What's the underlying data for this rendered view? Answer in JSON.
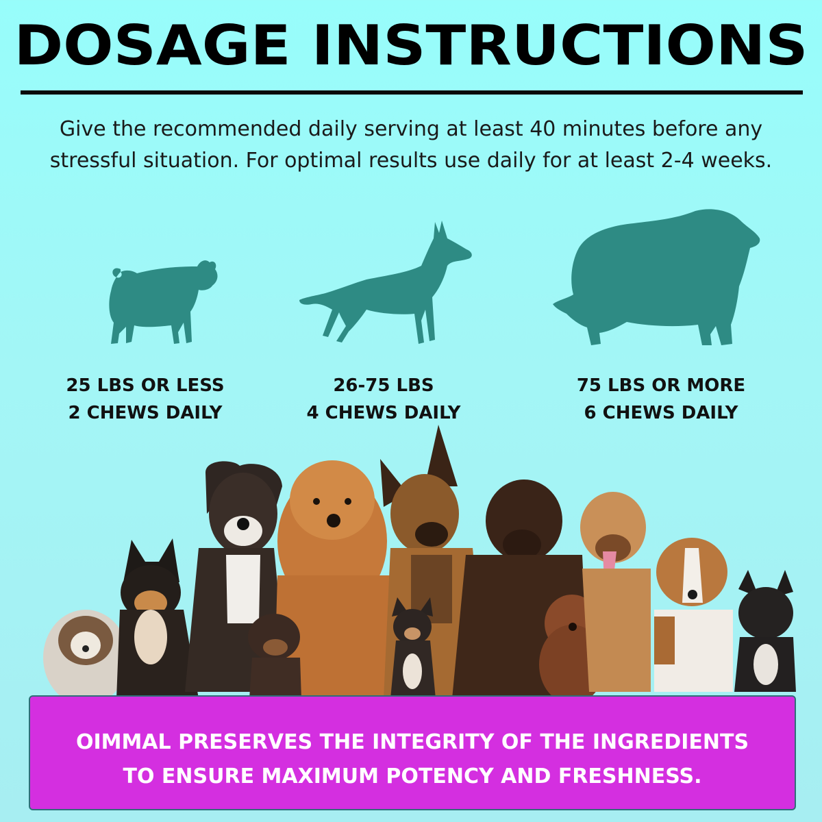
{
  "header": {
    "title": "DOSAGE INSTRUCTIONS",
    "intro_line1": "Give the recommended daily serving at least 40 minutes before any",
    "intro_line2": "stressful situation. For optimal results use daily for at least 2-4 weeks."
  },
  "silhouette_color": "#2e8b84",
  "tiers": [
    {
      "icon": "small-dog-silhouette-icon",
      "weight": "25 LBS OR LESS",
      "dose": "2 CHEWS DAILY"
    },
    {
      "icon": "medium-dog-silhouette-icon",
      "weight": "26-75 LBS",
      "dose": "4 CHEWS DAILY"
    },
    {
      "icon": "large-dog-silhouette-icon",
      "weight": "75 LBS OR MORE",
      "dose": "6 CHEWS DAILY"
    }
  ],
  "photo": {
    "icon": "dog-group-photo"
  },
  "banner": {
    "color": "#d42fe0",
    "line1": "OIMMAL PRESERVES THE INTEGRITY OF THE INGREDIENTS",
    "line2": "TO ENSURE MAXIMUM POTENCY AND FRESHNESS."
  }
}
